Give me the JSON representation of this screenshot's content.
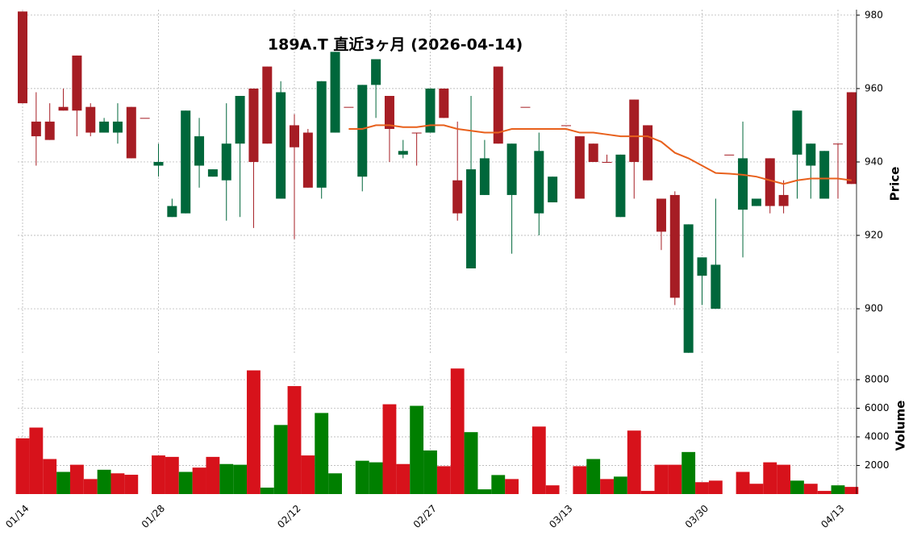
{
  "chart_data": {
    "type": "candlestick",
    "title": "189A.T  直近3ヶ月  (2026-04-14)",
    "y_label": "Price",
    "y2_label": "Volume",
    "categories": [
      "01/14",
      null,
      null,
      null,
      null,
      null,
      null,
      null,
      null,
      null,
      "01/28",
      null,
      null,
      null,
      null,
      null,
      null,
      null,
      null,
      null,
      "02/12",
      null,
      null,
      null,
      null,
      null,
      null,
      null,
      null,
      null,
      "02/27",
      null,
      null,
      null,
      null,
      null,
      null,
      null,
      null,
      null,
      "03/13",
      null,
      null,
      null,
      null,
      null,
      null,
      null,
      null,
      null,
      "03/30",
      null,
      null,
      null,
      null,
      null,
      null,
      null,
      null,
      null,
      "04/13",
      null
    ],
    "open": [
      981,
      951,
      951,
      955,
      969,
      955,
      948,
      948,
      955,
      952,
      939,
      925,
      926,
      939,
      936,
      935,
      945,
      960,
      966,
      930,
      950,
      948,
      933,
      948,
      955,
      936,
      961,
      958,
      942,
      948,
      948,
      960,
      935,
      911,
      931,
      966,
      931,
      955,
      926,
      929,
      950,
      947,
      945,
      940,
      925,
      957,
      950,
      930,
      931,
      888,
      909,
      900,
      942,
      927,
      928,
      941,
      931,
      942,
      939,
      930,
      945,
      959
    ],
    "high": [
      981,
      959,
      956,
      960,
      969,
      956,
      952,
      956,
      955,
      952,
      945,
      930,
      954,
      952,
      938,
      956,
      958,
      960,
      966,
      962,
      953,
      949,
      962,
      970,
      955,
      961,
      968,
      958,
      946,
      948,
      960,
      960,
      951,
      958,
      946,
      966,
      945,
      955,
      948,
      936,
      950,
      947,
      945,
      942,
      942,
      957,
      950,
      930,
      932,
      923,
      914,
      930,
      942,
      951,
      930,
      941,
      935,
      954,
      945,
      943,
      945,
      959
    ],
    "low": [
      956,
      939,
      946,
      954,
      947,
      947,
      948,
      945,
      941,
      952,
      936,
      925,
      926,
      933,
      936,
      924,
      925,
      922,
      945,
      930,
      919,
      933,
      930,
      948,
      955,
      932,
      952,
      940,
      941,
      939,
      948,
      952,
      924,
      911,
      931,
      945,
      915,
      955,
      920,
      929,
      950,
      930,
      940,
      940,
      925,
      930,
      935,
      916,
      901,
      888,
      901,
      900,
      942,
      914,
      928,
      926,
      926,
      930,
      930,
      930,
      930,
      934
    ],
    "close": [
      956,
      947,
      946,
      954,
      954,
      948,
      951,
      951,
      941,
      952,
      940,
      928,
      954,
      947,
      938,
      945,
      958,
      940,
      945,
      959,
      944,
      933,
      962,
      970,
      955,
      961,
      968,
      949,
      943,
      948,
      960,
      952,
      926,
      938,
      941,
      945,
      945,
      955,
      943,
      936,
      950,
      930,
      940,
      940,
      942,
      940,
      935,
      921,
      903,
      923,
      914,
      912,
      942,
      941,
      930,
      928,
      928,
      954,
      945,
      943,
      945,
      934
    ],
    "volume": [
      3900,
      4650,
      2450,
      1550,
      2050,
      1050,
      1700,
      1450,
      1350,
      0,
      2700,
      2600,
      1550,
      1850,
      2600,
      2100,
      2050,
      8650,
      450,
      4830,
      7550,
      2700,
      5670,
      1450,
      0,
      2330,
      2220,
      6280,
      2100,
      6170,
      3050,
      1950,
      8780,
      4330,
      330,
      1330,
      1050,
      0,
      4720,
      610,
      0,
      1950,
      2450,
      1050,
      1220,
      4440,
      220,
      2050,
      2050,
      2940,
      830,
      940,
      0,
      1550,
      720,
      2220,
      2050,
      940,
      720,
      220,
      610,
      500
    ],
    "ma": [
      null,
      null,
      null,
      null,
      null,
      null,
      null,
      null,
      null,
      null,
      null,
      null,
      null,
      null,
      null,
      null,
      null,
      null,
      null,
      null,
      null,
      null,
      null,
      null,
      949,
      949,
      950,
      950,
      949.5,
      949.5,
      950,
      950,
      949,
      948.5,
      948,
      948,
      949,
      949,
      949,
      949,
      949,
      948,
      948,
      947.5,
      947,
      947,
      947,
      945.5,
      942.5,
      941,
      939,
      937,
      936.8,
      936.5,
      936,
      935,
      934,
      935,
      935.5,
      935.5,
      935.5,
      935
    ],
    "up_color": "#00673b",
    "down_color": "#a61d24",
    "volume_up_color": "#007f00",
    "volume_down_color": "#d7121b",
    "ma_color": "#e8601c",
    "ylim": [
      887.5,
      981.5
    ],
    "yticks": [
      900,
      920,
      940,
      960,
      980
    ],
    "y2lim": [
      0,
      9300
    ],
    "y2ticks": [
      2000,
      4000,
      6000,
      8000
    ],
    "grid": true
  }
}
